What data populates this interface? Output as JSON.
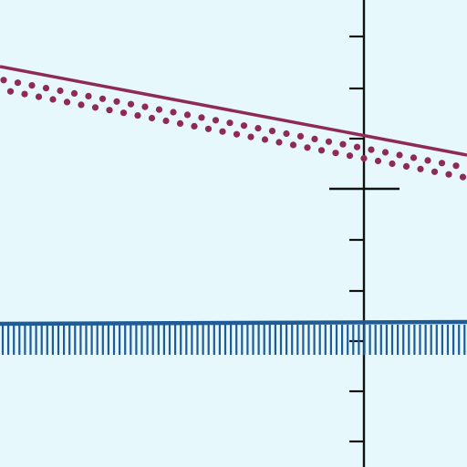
{
  "colors": {
    "background": "#e6f8fc",
    "axis": "#111111",
    "boundary_line": "#8e2a57",
    "boundary_dots": "#8e2a57",
    "inequality_line": "#1f5c97"
  },
  "diagram": {
    "shading_above": true,
    "shading_below": true,
    "shaded_lines_count": 2,
    "labels": []
  }
}
